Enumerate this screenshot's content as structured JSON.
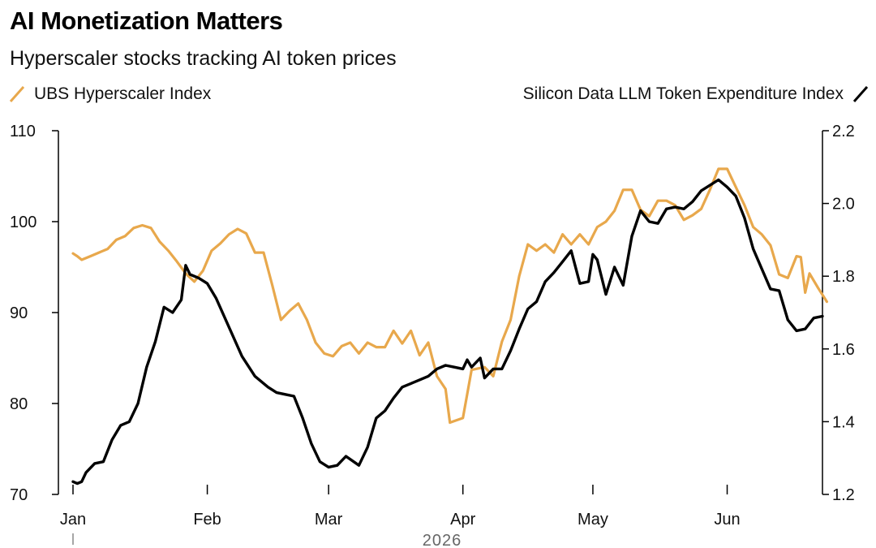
{
  "header": {
    "title": "AI Monetization Matters",
    "subtitle": "Hyperscaler stocks tracking AI token prices"
  },
  "colors": {
    "orange": "#E8A84C",
    "black": "#000000"
  },
  "chart_data": {
    "type": "line",
    "title": "AI Monetization Matters",
    "subtitle": "Hyperscaler stocks tracking AI token prices",
    "x_axis": {
      "tick_labels": [
        "Jan",
        "Feb",
        "Mar",
        "Apr",
        "May",
        "Jun"
      ],
      "tick_dates": [
        "2026-01-01",
        "2026-02-01",
        "2026-03-01",
        "2026-04-01",
        "2026-05-01",
        "2026-06-01"
      ],
      "range": [
        "2026-01-01",
        "2026-06-20"
      ],
      "year_label": "2026"
    },
    "y_left": {
      "range": [
        70,
        110
      ],
      "ticks": [
        70,
        80,
        90,
        100,
        110
      ]
    },
    "y_right": {
      "range": [
        1.2,
        2.2
      ],
      "ticks": [
        "1.2",
        "1.4",
        "1.6",
        "1.8",
        "2.0",
        "2.2"
      ]
    },
    "legend_placement": "top, split left and right",
    "grid": false,
    "series": [
      {
        "name": "UBS Hyperscaler Index",
        "axis": "left",
        "color": "#E8A84C",
        "points": [
          [
            "2026-01-01",
            96.5
          ],
          [
            "2026-01-02",
            96.2
          ],
          [
            "2026-01-03",
            95.8
          ],
          [
            "2026-01-05",
            96.2
          ],
          [
            "2026-01-07",
            96.6
          ],
          [
            "2026-01-09",
            97.0
          ],
          [
            "2026-01-11",
            98.0
          ],
          [
            "2026-01-13",
            98.4
          ],
          [
            "2026-01-15",
            99.3
          ],
          [
            "2026-01-17",
            99.6
          ],
          [
            "2026-01-19",
            99.3
          ],
          [
            "2026-01-21",
            97.8
          ],
          [
            "2026-01-23",
            96.8
          ],
          [
            "2026-01-25",
            95.6
          ],
          [
            "2026-01-27",
            94.3
          ],
          [
            "2026-01-29",
            93.4
          ],
          [
            "2026-01-31",
            94.6
          ],
          [
            "2026-02-02",
            96.8
          ],
          [
            "2026-02-04",
            97.6
          ],
          [
            "2026-02-06",
            98.6
          ],
          [
            "2026-02-08",
            99.2
          ],
          [
            "2026-02-10",
            98.7
          ],
          [
            "2026-02-12",
            96.6
          ],
          [
            "2026-02-14",
            96.6
          ],
          [
            "2026-02-16",
            93.0
          ],
          [
            "2026-02-18",
            89.2
          ],
          [
            "2026-02-20",
            90.2
          ],
          [
            "2026-02-22",
            91.0
          ],
          [
            "2026-02-24",
            89.2
          ],
          [
            "2026-02-26",
            86.7
          ],
          [
            "2026-02-28",
            85.5
          ],
          [
            "2026-03-02",
            85.2
          ],
          [
            "2026-03-04",
            86.3
          ],
          [
            "2026-03-06",
            86.7
          ],
          [
            "2026-03-08",
            85.5
          ],
          [
            "2026-03-10",
            86.7
          ],
          [
            "2026-03-12",
            86.2
          ],
          [
            "2026-03-14",
            86.2
          ],
          [
            "2026-03-16",
            88.0
          ],
          [
            "2026-03-18",
            86.6
          ],
          [
            "2026-03-20",
            88.0
          ],
          [
            "2026-03-22",
            85.3
          ],
          [
            "2026-03-24",
            86.7
          ],
          [
            "2026-03-26",
            83.0
          ],
          [
            "2026-03-28",
            81.6
          ],
          [
            "2026-03-29",
            77.9
          ],
          [
            "2026-04-01",
            78.4
          ],
          [
            "2026-04-03",
            83.7
          ],
          [
            "2026-04-06",
            84.0
          ],
          [
            "2026-04-08",
            83.0
          ],
          [
            "2026-04-10",
            86.8
          ],
          [
            "2026-04-12",
            89.2
          ],
          [
            "2026-04-14",
            94.0
          ],
          [
            "2026-04-16",
            97.5
          ],
          [
            "2026-04-18",
            96.8
          ],
          [
            "2026-04-20",
            97.5
          ],
          [
            "2026-04-22",
            96.6
          ],
          [
            "2026-04-24",
            98.6
          ],
          [
            "2026-04-26",
            97.5
          ],
          [
            "2026-04-28",
            98.6
          ],
          [
            "2026-04-30",
            97.5
          ],
          [
            "2026-05-02",
            99.4
          ],
          [
            "2026-05-04",
            100.0
          ],
          [
            "2026-05-06",
            101.2
          ],
          [
            "2026-05-08",
            103.5
          ],
          [
            "2026-05-10",
            103.5
          ],
          [
            "2026-05-12",
            101.3
          ],
          [
            "2026-05-14",
            100.6
          ],
          [
            "2026-05-16",
            102.3
          ],
          [
            "2026-05-18",
            102.3
          ],
          [
            "2026-05-20",
            101.8
          ],
          [
            "2026-05-22",
            100.2
          ],
          [
            "2026-05-24",
            100.7
          ],
          [
            "2026-05-26",
            101.4
          ],
          [
            "2026-05-28",
            103.5
          ],
          [
            "2026-05-30",
            105.8
          ],
          [
            "2026-06-01",
            105.8
          ],
          [
            "2026-06-03",
            103.8
          ],
          [
            "2026-06-05",
            101.8
          ],
          [
            "2026-06-07",
            99.4
          ],
          [
            "2026-06-09",
            98.6
          ],
          [
            "2026-06-11",
            97.4
          ],
          [
            "2026-06-13",
            94.2
          ],
          [
            "2026-06-15",
            93.8
          ],
          [
            "2026-06-17",
            96.2
          ],
          [
            "2026-06-18",
            96.1
          ],
          [
            "2026-06-19",
            92.2
          ],
          [
            "2026-06-20",
            94.3
          ],
          [
            "2026-06-22",
            92.7
          ],
          [
            "2026-06-24",
            91.2
          ]
        ]
      },
      {
        "name": "Silicon Data LLM Token Expenditure Index",
        "axis": "right",
        "color": "#000000",
        "points": [
          [
            "2026-01-01",
            1.235
          ],
          [
            "2026-01-02",
            1.23
          ],
          [
            "2026-01-03",
            1.235
          ],
          [
            "2026-01-04",
            1.26
          ],
          [
            "2026-01-06",
            1.285
          ],
          [
            "2026-01-08",
            1.29
          ],
          [
            "2026-01-10",
            1.35
          ],
          [
            "2026-01-12",
            1.39
          ],
          [
            "2026-01-14",
            1.4
          ],
          [
            "2026-01-16",
            1.45
          ],
          [
            "2026-01-18",
            1.55
          ],
          [
            "2026-01-20",
            1.62
          ],
          [
            "2026-01-22",
            1.715
          ],
          [
            "2026-01-24",
            1.7
          ],
          [
            "2026-01-26",
            1.735
          ],
          [
            "2026-01-27",
            1.83
          ],
          [
            "2026-01-28",
            1.805
          ],
          [
            "2026-01-30",
            1.795
          ],
          [
            "2026-02-01",
            1.78
          ],
          [
            "2026-02-03",
            1.74
          ],
          [
            "2026-02-06",
            1.66
          ],
          [
            "2026-02-09",
            1.58
          ],
          [
            "2026-02-12",
            1.525
          ],
          [
            "2026-02-15",
            1.495
          ],
          [
            "2026-02-17",
            1.48
          ],
          [
            "2026-02-19",
            1.475
          ],
          [
            "2026-02-21",
            1.47
          ],
          [
            "2026-02-23",
            1.41
          ],
          [
            "2026-02-25",
            1.34
          ],
          [
            "2026-02-27",
            1.29
          ],
          [
            "2026-03-01",
            1.275
          ],
          [
            "2026-03-03",
            1.28
          ],
          [
            "2026-03-05",
            1.305
          ],
          [
            "2026-03-08",
            1.28
          ],
          [
            "2026-03-10",
            1.33
          ],
          [
            "2026-03-12",
            1.41
          ],
          [
            "2026-03-14",
            1.43
          ],
          [
            "2026-03-16",
            1.465
          ],
          [
            "2026-03-18",
            1.495
          ],
          [
            "2026-03-20",
            1.505
          ],
          [
            "2026-03-22",
            1.515
          ],
          [
            "2026-03-24",
            1.525
          ],
          [
            "2026-03-26",
            1.545
          ],
          [
            "2026-03-28",
            1.555
          ],
          [
            "2026-03-30",
            1.55
          ],
          [
            "2026-04-01",
            1.545
          ],
          [
            "2026-04-02",
            1.57
          ],
          [
            "2026-04-03",
            1.55
          ],
          [
            "2026-04-05",
            1.575
          ],
          [
            "2026-04-06",
            1.52
          ],
          [
            "2026-04-08",
            1.545
          ],
          [
            "2026-04-10",
            1.545
          ],
          [
            "2026-04-12",
            1.595
          ],
          [
            "2026-04-14",
            1.655
          ],
          [
            "2026-04-16",
            1.71
          ],
          [
            "2026-04-18",
            1.73
          ],
          [
            "2026-04-20",
            1.785
          ],
          [
            "2026-04-22",
            1.81
          ],
          [
            "2026-04-24",
            1.84
          ],
          [
            "2026-04-26",
            1.87
          ],
          [
            "2026-04-28",
            1.78
          ],
          [
            "2026-04-30",
            1.785
          ],
          [
            "2026-05-01",
            1.86
          ],
          [
            "2026-05-02",
            1.845
          ],
          [
            "2026-05-04",
            1.75
          ],
          [
            "2026-05-06",
            1.825
          ],
          [
            "2026-05-08",
            1.775
          ],
          [
            "2026-05-10",
            1.91
          ],
          [
            "2026-05-12",
            1.98
          ],
          [
            "2026-05-14",
            1.95
          ],
          [
            "2026-05-16",
            1.945
          ],
          [
            "2026-05-18",
            1.985
          ],
          [
            "2026-05-20",
            1.99
          ],
          [
            "2026-05-22",
            1.985
          ],
          [
            "2026-05-24",
            2.005
          ],
          [
            "2026-05-26",
            2.035
          ],
          [
            "2026-05-28",
            2.05
          ],
          [
            "2026-05-30",
            2.065
          ],
          [
            "2026-06-01",
            2.045
          ],
          [
            "2026-06-03",
            2.02
          ],
          [
            "2026-06-05",
            1.96
          ],
          [
            "2026-06-07",
            1.875
          ],
          [
            "2026-06-09",
            1.82
          ],
          [
            "2026-06-11",
            1.765
          ],
          [
            "2026-06-13",
            1.76
          ],
          [
            "2026-06-15",
            1.68
          ],
          [
            "2026-06-17",
            1.65
          ],
          [
            "2026-06-19",
            1.655
          ],
          [
            "2026-06-21",
            1.685
          ],
          [
            "2026-06-23",
            1.69
          ]
        ]
      }
    ]
  }
}
